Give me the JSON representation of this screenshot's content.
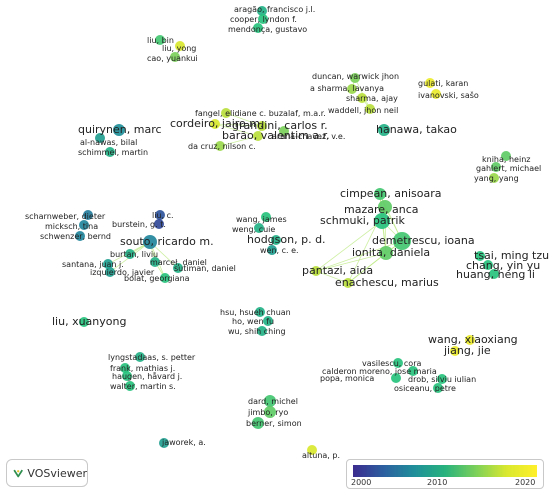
{
  "app": {
    "logo_text": "VOSviewer"
  },
  "legend": {
    "ticks": [
      "2000",
      "2010",
      "2020"
    ]
  },
  "colors": {
    "old": "#3b2b8e",
    "mid": "#1f8f9a",
    "green": "#27c27d",
    "new": "#e6ea2a",
    "edge": "#b8e87a"
  },
  "nodes": [
    {
      "id": "aragao",
      "label": "aragão, francisco j.l.",
      "year": 2012
    },
    {
      "id": "cooper",
      "label": "cooper, lyndon f.",
      "year": 2013
    },
    {
      "id": "mendonca",
      "label": "mendonça, gustavo",
      "year": 2013
    },
    {
      "id": "liu_bin",
      "label": "liu, bin",
      "year": 2014
    },
    {
      "id": "liu_yong",
      "label": "liu, yong",
      "year": 2019
    },
    {
      "id": "cao_yuankui",
      "label": "cao, yuankui",
      "year": 2016
    },
    {
      "id": "duncan",
      "label": "duncan, warwick jhon",
      "year": 2016
    },
    {
      "id": "sharma_lavanya",
      "label": "a sharma, lavanya",
      "year": 2017
    },
    {
      "id": "sharma_ajay",
      "label": "sharma, ajay",
      "year": 2018
    },
    {
      "id": "waddell",
      "label": "waddell, jhon neil",
      "year": 2018
    },
    {
      "id": "gulati",
      "label": "gulati, karan",
      "year": 2020
    },
    {
      "id": "ivanovski",
      "label": "ivanovski, sašo",
      "year": 2020
    },
    {
      "id": "quirynen",
      "label": "quirynen, marc",
      "year": 2010
    },
    {
      "id": "alnawas",
      "label": "al-nawas, bilal",
      "year": 2011
    },
    {
      "id": "schimmel",
      "label": "schimmel, martin",
      "year": 2012
    },
    {
      "id": "fangel",
      "label": "fangel, elidiane c. buzalaf, m.a.r.",
      "year": 2018
    },
    {
      "id": "cordeiro",
      "label": "cordeiro, jairo m.",
      "year": 2019
    },
    {
      "id": "grandini",
      "label": "grandini, carlos r.",
      "year": 2018
    },
    {
      "id": "barao",
      "label": "barão, valentim a.r.",
      "year": 2018
    },
    {
      "id": "arana",
      "label": "arana-chavez, v.e.",
      "year": 2016
    },
    {
      "id": "dacruz",
      "label": "da cruz, nilson c.",
      "year": 2017
    },
    {
      "id": "hanawa",
      "label": "hanawa, takao",
      "year": 2012
    },
    {
      "id": "kniha",
      "label": "kniha, heinz",
      "year": 2015
    },
    {
      "id": "gahlert",
      "label": "gahlert, michael",
      "year": 2015
    },
    {
      "id": "yang_yang",
      "label": "yang, yang",
      "year": 2017
    },
    {
      "id": "scharnweber",
      "label": "scharnweber, dieter",
      "year": 2008
    },
    {
      "id": "micksch",
      "label": "micksch, tina",
      "year": 2009
    },
    {
      "id": "schwenzer",
      "label": "schwenzer, bernd",
      "year": 2009
    },
    {
      "id": "liu_c",
      "label": "liu, c.",
      "year": 2004
    },
    {
      "id": "burstein",
      "label": "burstein, g. t.",
      "year": 2003
    },
    {
      "id": "souto",
      "label": "souto, ricardo m.",
      "year": 2009
    },
    {
      "id": "burtan",
      "label": "burtan, liviu",
      "year": 2012
    },
    {
      "id": "marcel",
      "label": "marceł, daniel",
      "year": 2012
    },
    {
      "id": "santana",
      "label": "santana, juan j.",
      "year": 2011
    },
    {
      "id": "izquierdo",
      "label": "izquierdo, javier",
      "year": 2011
    },
    {
      "id": "sutiman",
      "label": "sutiman, daniel",
      "year": 2012
    },
    {
      "id": "bolat",
      "label": "bolat, georgiana",
      "year": 2013
    },
    {
      "id": "wang_james",
      "label": "wang, james",
      "year": 2013
    },
    {
      "id": "weng_cuie",
      "label": "weng, cuie",
      "year": 2012
    },
    {
      "id": "hodgson",
      "label": "hodgson, p. d.",
      "year": 2012
    },
    {
      "id": "wen_ce",
      "label": "wen, c. e.",
      "year": 2011
    },
    {
      "id": "cimpean",
      "label": "cimpean, anisoara",
      "year": 2014
    },
    {
      "id": "mazare",
      "label": "mazare, anca",
      "year": 2015
    },
    {
      "id": "schmuki",
      "label": "schmuki, patrik",
      "year": 2013
    },
    {
      "id": "demetrescu",
      "label": "demetrescu, ioana",
      "year": 2014
    },
    {
      "id": "ionita",
      "label": "ionita, daniela",
      "year": 2015
    },
    {
      "id": "pantazi",
      "label": "pantazi, aida",
      "year": 2018
    },
    {
      "id": "enachescu",
      "label": "enachescu, marius",
      "year": 2018
    },
    {
      "id": "tsai",
      "label": "tsai, ming tzu",
      "year": 2013
    },
    {
      "id": "chang",
      "label": "chang, yin yu",
      "year": 2013
    },
    {
      "id": "huang",
      "label": "huang, heng li",
      "year": 2013
    },
    {
      "id": "liu_xuanyong",
      "label": "liu, xuanyong",
      "year": 2013
    },
    {
      "id": "hsu",
      "label": "hsu, hsueh chuan",
      "year": 2012
    },
    {
      "id": "ho",
      "label": "ho, wen fu",
      "year": 2012
    },
    {
      "id": "wu",
      "label": "wu, shih ching",
      "year": 2012
    },
    {
      "id": "wang_xiaoxiang",
      "label": "wang, xiaoxiang",
      "year": 2020
    },
    {
      "id": "jiang_jie",
      "label": "jiang, jie",
      "year": 2020
    },
    {
      "id": "lyngstadaas",
      "label": "lyngstadaas, s. petter",
      "year": 2012
    },
    {
      "id": "frank",
      "label": "frank, mathias j.",
      "year": 2013
    },
    {
      "id": "haugen",
      "label": "haugen, håvard j.",
      "year": 2013
    },
    {
      "id": "walter",
      "label": "walter, martin s.",
      "year": 2013
    },
    {
      "id": "vasilescu",
      "label": "vasilescu, cora",
      "year": 2013
    },
    {
      "id": "calderon",
      "label": "calderon moreno, jose maria",
      "year": 2013
    },
    {
      "id": "popa",
      "label": "popa, monica",
      "year": 2013
    },
    {
      "id": "drob",
      "label": "drob, silviu iulian",
      "year": 2013
    },
    {
      "id": "osiceanu",
      "label": "osiceanu, petre",
      "year": 2013
    },
    {
      "id": "dard",
      "label": "dard, michel",
      "year": 2014
    },
    {
      "id": "jimbo",
      "label": "jimbo, ryo",
      "year": 2015
    },
    {
      "id": "berner",
      "label": "berner, simon",
      "year": 2014
    },
    {
      "id": "jaworek",
      "label": "jaworek, a.",
      "year": 2011
    },
    {
      "id": "altuna",
      "label": "altuna, p.",
      "year": 2019
    }
  ]
}
